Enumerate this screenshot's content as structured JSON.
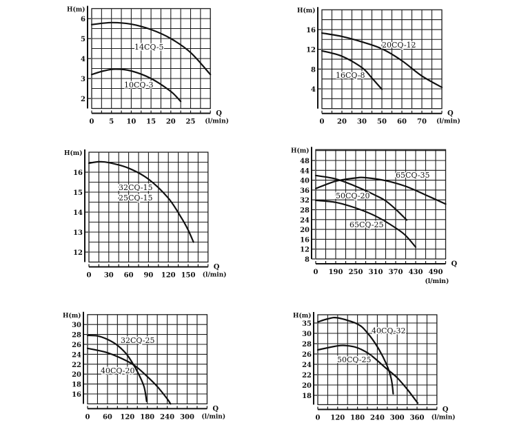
{
  "chart_data": [
    {
      "type": "line",
      "xlabel": "Q",
      "xunit": "(l/min)",
      "ylabel": "H(m)",
      "grid": true,
      "xticks": [
        0,
        5,
        10,
        15,
        20,
        25
      ],
      "yticks": [
        2,
        3,
        4,
        5,
        6
      ],
      "xlim": [
        0,
        30
      ],
      "ylim": [
        1.5,
        6.5
      ],
      "series": [
        {
          "name": "14CQ-5",
          "points": [
            [
              0,
              5.7
            ],
            [
              5,
              5.8
            ],
            [
              10,
              5.72
            ],
            [
              15,
              5.45
            ],
            [
              20,
              5.0
            ],
            [
              25,
              4.3
            ],
            [
              30,
              3.2
            ]
          ]
        },
        {
          "name": "10CQ-3",
          "points": [
            [
              0,
              3.2
            ],
            [
              3,
              3.38
            ],
            [
              6,
              3.47
            ],
            [
              10,
              3.38
            ],
            [
              15,
              3.0
            ],
            [
              20,
              2.35
            ],
            [
              22.5,
              1.85
            ]
          ]
        }
      ]
    },
    {
      "type": "line",
      "xlabel": "Q",
      "xunit": "(l/min)",
      "ylabel": "H(m)",
      "grid": true,
      "xticks": [
        0,
        20,
        30,
        50,
        60,
        70
      ],
      "yticks": [
        4,
        8,
        12,
        16
      ],
      "xlim": [
        0,
        80
      ],
      "ylim": [
        0,
        20
      ],
      "series": [
        {
          "name": "20CQ-12",
          "points": [
            [
              0,
              15.3
            ],
            [
              20,
              14.6
            ],
            [
              30,
              13.5
            ],
            [
              50,
              12.1
            ],
            [
              60,
              9.7
            ],
            [
              70,
              6.6
            ],
            [
              80,
              4.3
            ]
          ]
        },
        {
          "name": "16CQ-8",
          "points": [
            [
              0,
              11.7
            ],
            [
              20,
              10.6
            ],
            [
              30,
              8.3
            ],
            [
              40,
              6.2
            ],
            [
              50,
              3.9
            ]
          ]
        }
      ]
    },
    {
      "type": "line",
      "xlabel": "Q",
      "xunit": "(l/min)",
      "ylabel": "H(m)",
      "grid": true,
      "xticks": [
        0,
        30,
        60,
        90,
        120,
        150
      ],
      "yticks": [
        12,
        13,
        14,
        15,
        16
      ],
      "xlim": [
        0,
        180
      ],
      "ylim": [
        11.5,
        17
      ],
      "series": [
        {
          "name": "32CQ-15",
          "label2": "25CQ-15",
          "points": [
            [
              0,
              16.45
            ],
            [
              15,
              16.52
            ],
            [
              30,
              16.48
            ],
            [
              60,
              16.2
            ],
            [
              90,
              15.65
            ],
            [
              120,
              14.7
            ],
            [
              140,
              13.7
            ],
            [
              150,
              13.1
            ],
            [
              158,
              12.5
            ]
          ]
        }
      ]
    },
    {
      "type": "line",
      "xlabel": "Q",
      "xunit": "(l/min)",
      "ylabel": "H(m)",
      "grid": true,
      "xticks": [
        0,
        190,
        250,
        310,
        370,
        430,
        490
      ],
      "yticks": [
        8,
        12,
        16,
        20,
        24,
        28,
        32,
        36,
        40,
        44,
        48
      ],
      "xlim": [
        0,
        520
      ],
      "ylim": [
        8,
        52
      ],
      "series": [
        {
          "name": "65CQ-35",
          "points": [
            [
              0,
              36.6
            ],
            [
              190,
              39.6
            ],
            [
              250,
              40.9
            ],
            [
              280,
              41
            ],
            [
              340,
              39.8
            ],
            [
              400,
              37.5
            ],
            [
              460,
              34
            ],
            [
              520,
              30.3
            ]
          ]
        },
        {
          "name": "50CQ-20",
          "points": [
            [
              0,
              41.9
            ],
            [
              190,
              40.5
            ],
            [
              250,
              37.5
            ],
            [
              310,
              33.8
            ],
            [
              340,
              31.6
            ],
            [
              370,
              28.2
            ],
            [
              403,
              23.8
            ]
          ]
        },
        {
          "name": "65CQ-25",
          "points": [
            [
              0,
              31.8
            ],
            [
              190,
              31
            ],
            [
              250,
              28.7
            ],
            [
              310,
              25.4
            ],
            [
              370,
              20.6
            ],
            [
              400,
              17.5
            ],
            [
              430,
              12.8
            ]
          ]
        }
      ]
    },
    {
      "type": "line",
      "xlabel": "Q",
      "xunit": "(l/min)",
      "ylabel": "H(m)",
      "grid": true,
      "xticks": [
        0,
        60,
        120,
        180,
        240,
        300
      ],
      "yticks": [
        16,
        18,
        20,
        22,
        24,
        26,
        28,
        30
      ],
      "xlim": [
        0,
        360
      ],
      "ylim": [
        14,
        32
      ],
      "series": [
        {
          "name": "32CQ-25",
          "points": [
            [
              0,
              27.8
            ],
            [
              30,
              27.7
            ],
            [
              60,
              27
            ],
            [
              90,
              25.8
            ],
            [
              120,
              23.8
            ],
            [
              150,
              20.5
            ],
            [
              170,
              17.5
            ],
            [
              178,
              14.5
            ]
          ]
        },
        {
          "name": "40CQ-20",
          "points": [
            [
              0,
              25.2
            ],
            [
              60,
              24.3
            ],
            [
              120,
              22.6
            ],
            [
              150,
              21.3
            ],
            [
              180,
              19.5
            ],
            [
              210,
              17.5
            ],
            [
              240,
              15
            ],
            [
              250,
              14
            ]
          ]
        }
      ]
    },
    {
      "type": "line",
      "xlabel": "Q",
      "xunit": "(l/min)",
      "ylabel": "H(m)",
      "grid": true,
      "xticks": [
        0,
        120,
        180,
        240,
        300,
        360
      ],
      "yticks": [
        18,
        20,
        22,
        24,
        26,
        28,
        30,
        35
      ],
      "xlim": [
        0,
        360
      ],
      "ylim": [
        16,
        36
      ],
      "series": [
        {
          "name": "40CQ-32",
          "points": [
            [
              0,
              35.5
            ],
            [
              60,
              37
            ],
            [
              120,
              37.5
            ],
            [
              180,
              34.5
            ],
            [
              210,
              30.2
            ],
            [
              240,
              27.4
            ],
            [
              267,
              24.1
            ],
            [
              282,
              21.2
            ],
            [
              288,
              18.3
            ]
          ]
        },
        {
          "name": "50CQ-25",
          "points": [
            [
              0,
              26.8
            ],
            [
              122,
              27.6
            ],
            [
              150,
              27.6
            ],
            [
              180,
              27.2
            ],
            [
              218,
              25.9
            ],
            [
              267,
              23.2
            ],
            [
              300,
              21.4
            ],
            [
              330,
              19.2
            ],
            [
              362,
              16.5
            ]
          ]
        }
      ]
    }
  ]
}
